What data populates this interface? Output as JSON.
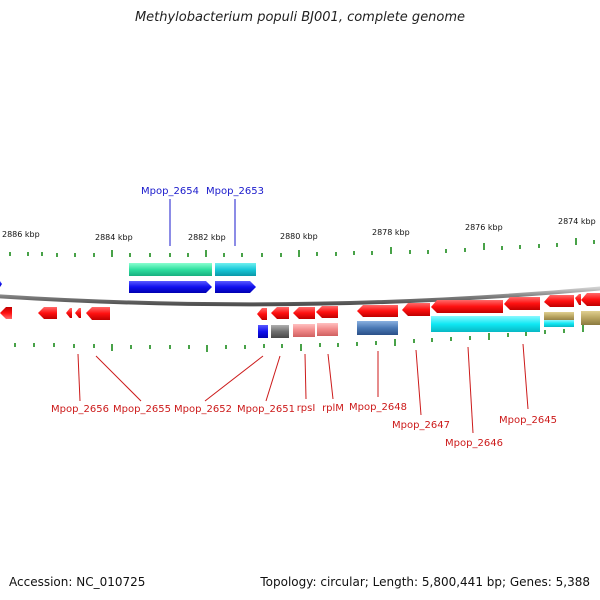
{
  "title": "Methylobacterium populi BJ001, complete genome",
  "footer": {
    "accession": "Accession: NC_010725",
    "topology": "Topology: circular; Length: 5,800,441 bp; Genes: 5,388"
  },
  "axis_labels": [
    "2886 kbp",
    "2884 kbp",
    "2882 kbp",
    "2880 kbp",
    "2878 kbp",
    "2876 kbp",
    "2874 kbp"
  ],
  "top_labels": [
    "Mpop_2654",
    "Mpop_2653"
  ],
  "bottom_labels": [
    "Mpop_2656",
    "Mpop_2655",
    "Mpop_2652",
    "Mpop_2651",
    "rpsI",
    "rplM",
    "Mpop_2648",
    "Mpop_2647",
    "Mpop_2646",
    "Mpop_2645"
  ],
  "colors": {
    "backbone": "#8a8a8a",
    "cds": "#ff1a1a",
    "top_feature": "#1f1fe6",
    "top_top_feature_a": "#3fe0a8",
    "top_top_feature_b": "#1ec8d8",
    "cyan": "#16e6f0",
    "blue_small": "#1a1ae0",
    "gray_small": "#7a7a7a",
    "pink": "#f09090",
    "steelblue": "#4a7ab8",
    "olive": "#b8a860",
    "tick": "#1a8a1a",
    "label_top": "#1a1acc",
    "label_bottom": "#cc1a1a"
  }
}
